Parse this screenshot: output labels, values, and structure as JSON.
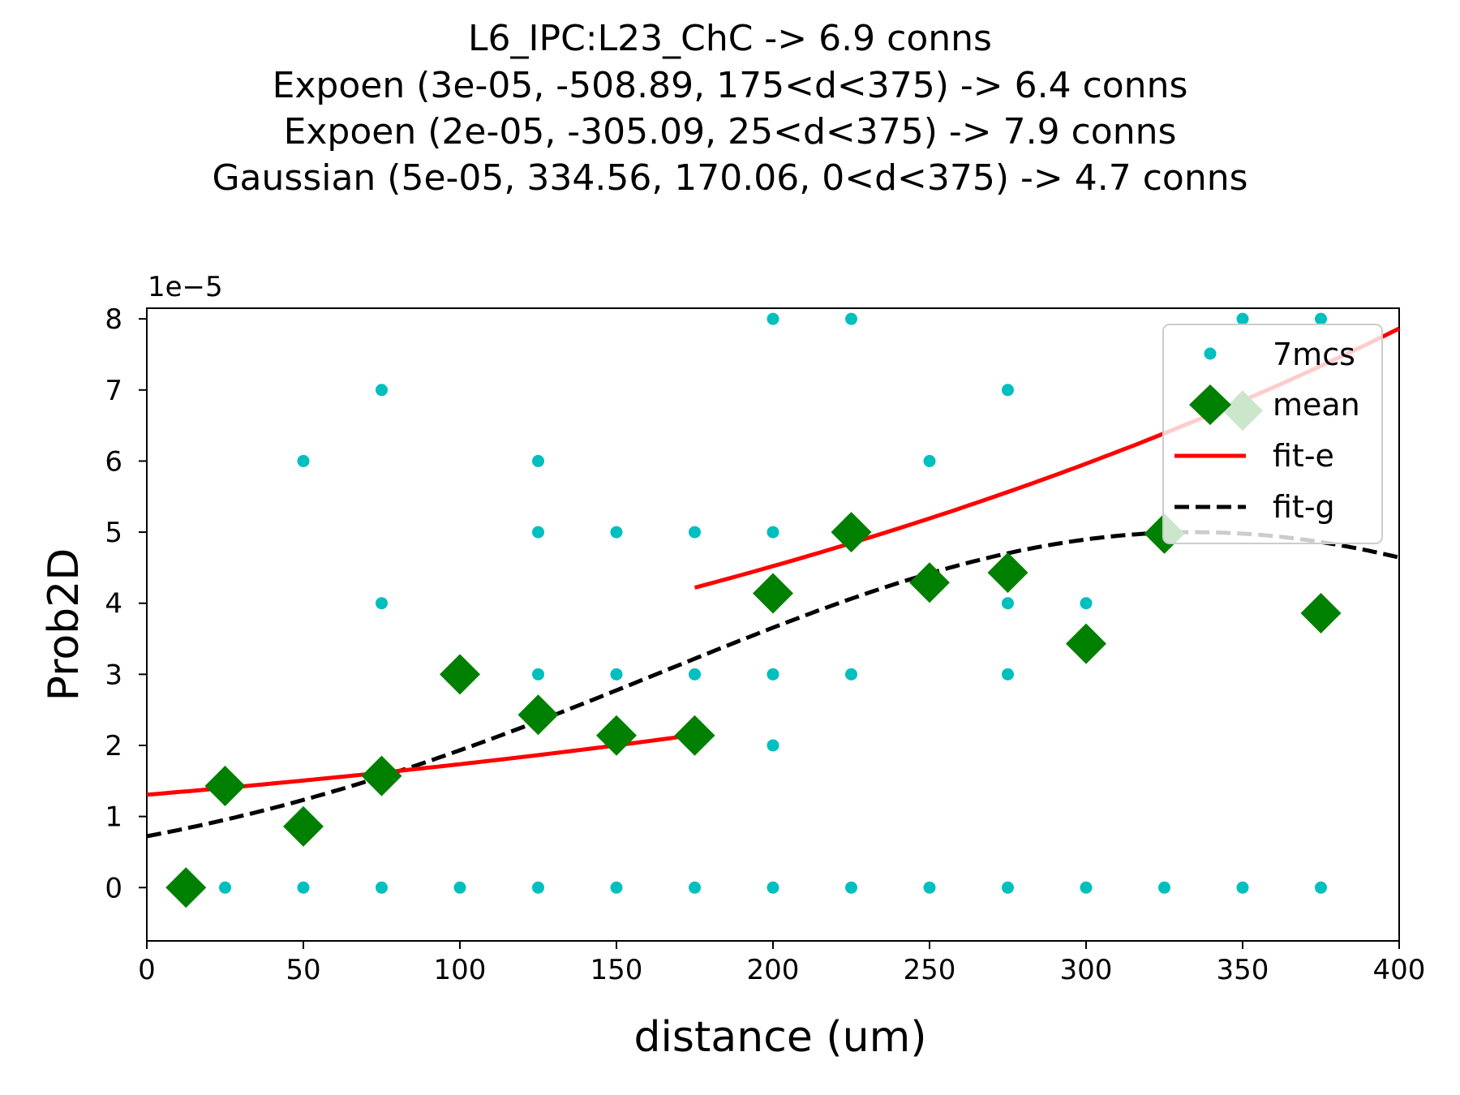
{
  "chart_data": {
    "type": "scatter",
    "title_lines": [
      "L6_IPC:L23_ChC -> 6.9 conns",
      "Expoen (3e-05, -508.89, 175<d<375) -> 6.4 conns",
      "Expoen (2e-05, -305.09, 25<d<375) -> 7.9 conns",
      "Gaussian (5e-05, 334.56, 170.06, 0<d<375) -> 4.7 conns"
    ],
    "xlabel": "distance (um)",
    "ylabel": "Prob2D",
    "y_offset_label": "1e−5",
    "xlim": [
      0,
      400
    ],
    "ylim": [
      -0.75,
      8.15
    ],
    "y_scale_note": "values in units of 1e-5",
    "x_ticks": [
      0,
      50,
      100,
      150,
      200,
      250,
      300,
      350,
      400
    ],
    "y_ticks": [
      0,
      1,
      2,
      3,
      4,
      5,
      6,
      7,
      8
    ],
    "grid": false,
    "legend_position": "upper-right",
    "series": [
      {
        "name": "7mcs",
        "kind": "points",
        "color": "#00bfbf",
        "points": [
          [
            25,
            0
          ],
          [
            50,
            0
          ],
          [
            50,
            6
          ],
          [
            75,
            0
          ],
          [
            75,
            4
          ],
          [
            75,
            7
          ],
          [
            100,
            0
          ],
          [
            125,
            0
          ],
          [
            125,
            3
          ],
          [
            125,
            5
          ],
          [
            125,
            6
          ],
          [
            150,
            0
          ],
          [
            150,
            3
          ],
          [
            150,
            5
          ],
          [
            175,
            0
          ],
          [
            175,
            3
          ],
          [
            175,
            5
          ],
          [
            200,
            0
          ],
          [
            200,
            2
          ],
          [
            200,
            3
          ],
          [
            200,
            5
          ],
          [
            200,
            8
          ],
          [
            225,
            0
          ],
          [
            225,
            3
          ],
          [
            225,
            8
          ],
          [
            250,
            0
          ],
          [
            250,
            6
          ],
          [
            275,
            0
          ],
          [
            275,
            3
          ],
          [
            275,
            4
          ],
          [
            275,
            7
          ],
          [
            300,
            0
          ],
          [
            300,
            4
          ],
          [
            325,
            0
          ],
          [
            350,
            0
          ],
          [
            350,
            8
          ],
          [
            375,
            0
          ],
          [
            375,
            8
          ]
        ]
      },
      {
        "name": "mean",
        "kind": "diamonds",
        "color": "#008000",
        "points": [
          [
            12.5,
            0
          ],
          [
            25,
            1.43
          ],
          [
            50,
            0.86
          ],
          [
            75,
            1.57
          ],
          [
            100,
            3.0
          ],
          [
            125,
            2.43
          ],
          [
            150,
            2.14
          ],
          [
            175,
            2.14
          ],
          [
            200,
            4.14
          ],
          [
            225,
            5.0
          ],
          [
            250,
            4.29
          ],
          [
            275,
            4.43
          ],
          [
            300,
            3.43
          ],
          [
            325,
            4.98
          ],
          [
            350,
            6.71
          ],
          [
            375,
            3.86
          ]
        ]
      },
      {
        "name": "fit-e",
        "kind": "exp-lines",
        "color": "#ff0000",
        "segments": [
          {
            "a": 1.306,
            "b": 351.6,
            "range": [
              0,
              175
            ]
          },
          {
            "a": 2.6,
            "b": 361.4,
            "range": [
              175,
              400
            ]
          }
        ]
      },
      {
        "name": "fit-g",
        "kind": "gaussian",
        "color": "#000000",
        "dash": true,
        "amp": 5.0,
        "mu": 334.56,
        "sigma": 170.06,
        "range": [
          0,
          400
        ]
      }
    ]
  }
}
